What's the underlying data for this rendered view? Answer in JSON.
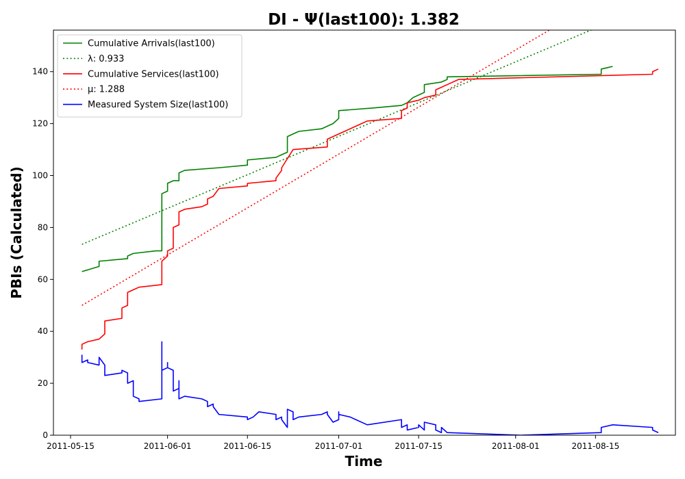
{
  "chart_data": {
    "type": "line",
    "title": "DI -  Ψ(last100): 1.382",
    "xlabel": "Time",
    "ylabel": "PBIs (Calculated)",
    "xlim": [
      "2011-05-12",
      "2011-08-29"
    ],
    "ylim": [
      0,
      156
    ],
    "x_ticks": [
      "2011-05-15",
      "2011-06-01",
      "2011-06-15",
      "2011-07-01",
      "2011-07-15",
      "2011-08-01",
      "2011-08-15"
    ],
    "y_ticks": [
      0,
      20,
      40,
      60,
      80,
      100,
      120,
      140
    ],
    "grid": false,
    "legend_position": "upper-left",
    "series": [
      {
        "name": "Cumulative Arrivals(last100)",
        "color": "#008000",
        "style": "solid",
        "points": [
          [
            "2011-05-17",
            63
          ],
          [
            "2011-05-20",
            65
          ],
          [
            "2011-05-20",
            67
          ],
          [
            "2011-05-25",
            68
          ],
          [
            "2011-05-25",
            69
          ],
          [
            "2011-05-26",
            70
          ],
          [
            "2011-05-30",
            71
          ],
          [
            "2011-05-31",
            71
          ],
          [
            "2011-05-31",
            93
          ],
          [
            "2011-06-01",
            94
          ],
          [
            "2011-06-01",
            97
          ],
          [
            "2011-06-02",
            98
          ],
          [
            "2011-06-03",
            98
          ],
          [
            "2011-06-03",
            101
          ],
          [
            "2011-06-04",
            102
          ],
          [
            "2011-06-10",
            103
          ],
          [
            "2011-06-15",
            104
          ],
          [
            "2011-06-15",
            106
          ],
          [
            "2011-06-20",
            107
          ],
          [
            "2011-06-21",
            108
          ],
          [
            "2011-06-22",
            109
          ],
          [
            "2011-06-22",
            115
          ],
          [
            "2011-06-23",
            116
          ],
          [
            "2011-06-24",
            117
          ],
          [
            "2011-06-28",
            118
          ],
          [
            "2011-06-29",
            119
          ],
          [
            "2011-06-30",
            120
          ],
          [
            "2011-07-01",
            122
          ],
          [
            "2011-07-01",
            125
          ],
          [
            "2011-07-07",
            126
          ],
          [
            "2011-07-12",
            127
          ],
          [
            "2011-07-13",
            128
          ],
          [
            "2011-07-14",
            130
          ],
          [
            "2011-07-15",
            131
          ],
          [
            "2011-07-16",
            132
          ],
          [
            "2011-07-16",
            135
          ],
          [
            "2011-07-19",
            136
          ],
          [
            "2011-07-20",
            137
          ],
          [
            "2011-07-20",
            138
          ],
          [
            "2011-08-16",
            139
          ],
          [
            "2011-08-16",
            141
          ],
          [
            "2011-08-18",
            142
          ]
        ]
      },
      {
        "name": "λ: 0.933",
        "color": "#008000",
        "style": "dotted",
        "points": [
          [
            "2011-05-17",
            73.5
          ],
          [
            "2011-08-18",
            159.5
          ]
        ]
      },
      {
        "name": "Cumulative Services(last100)",
        "color": "#ff0000",
        "style": "solid",
        "points": [
          [
            "2011-05-17",
            33
          ],
          [
            "2011-05-17",
            35
          ],
          [
            "2011-05-18",
            36
          ],
          [
            "2011-05-20",
            37
          ],
          [
            "2011-05-21",
            39
          ],
          [
            "2011-05-21",
            40
          ],
          [
            "2011-05-21",
            44
          ],
          [
            "2011-05-24",
            45
          ],
          [
            "2011-05-24",
            49
          ],
          [
            "2011-05-25",
            50
          ],
          [
            "2011-05-25",
            55
          ],
          [
            "2011-05-26",
            56
          ],
          [
            "2011-05-27",
            57
          ],
          [
            "2011-05-31",
            58
          ],
          [
            "2011-05-31",
            67
          ],
          [
            "2011-06-01",
            69
          ],
          [
            "2011-06-01",
            71
          ],
          [
            "2011-06-02",
            72
          ],
          [
            "2011-06-02",
            79
          ],
          [
            "2011-06-02",
            80
          ],
          [
            "2011-06-03",
            81
          ],
          [
            "2011-06-03",
            86
          ],
          [
            "2011-06-04",
            87
          ],
          [
            "2011-06-07",
            88
          ],
          [
            "2011-06-08",
            89
          ],
          [
            "2011-06-08",
            91
          ],
          [
            "2011-06-09",
            92
          ],
          [
            "2011-06-10",
            95
          ],
          [
            "2011-06-15",
            96
          ],
          [
            "2011-06-15",
            97
          ],
          [
            "2011-06-20",
            98
          ],
          [
            "2011-06-20",
            99
          ],
          [
            "2011-06-21",
            102
          ],
          [
            "2011-06-21",
            103
          ],
          [
            "2011-06-23",
            110
          ],
          [
            "2011-06-29",
            111
          ],
          [
            "2011-06-29",
            114
          ],
          [
            "2011-07-01",
            116
          ],
          [
            "2011-07-03",
            118
          ],
          [
            "2011-07-04",
            119
          ],
          [
            "2011-07-05",
            120
          ],
          [
            "2011-07-06",
            121
          ],
          [
            "2011-07-12",
            122
          ],
          [
            "2011-07-12",
            125
          ],
          [
            "2011-07-13",
            126
          ],
          [
            "2011-07-13",
            128
          ],
          [
            "2011-07-15",
            129
          ],
          [
            "2011-07-16",
            130
          ],
          [
            "2011-07-18",
            131
          ],
          [
            "2011-07-18",
            133
          ],
          [
            "2011-07-19",
            134
          ],
          [
            "2011-07-20",
            135
          ],
          [
            "2011-07-22",
            137
          ],
          [
            "2011-08-25",
            139
          ],
          [
            "2011-08-25",
            140
          ],
          [
            "2011-08-26",
            141
          ]
        ]
      },
      {
        "name": "μ: 1.288",
        "color": "#ff0000",
        "style": "dotted",
        "points": [
          [
            "2011-05-17",
            50
          ],
          [
            "2011-08-10",
            160
          ]
        ]
      },
      {
        "name": "Measured System Size(last100)",
        "color": "#0000ff",
        "style": "solid",
        "points": [
          [
            "2011-05-17",
            31
          ],
          [
            "2011-05-17",
            30
          ],
          [
            "2011-05-17",
            28
          ],
          [
            "2011-05-18",
            29
          ],
          [
            "2011-05-18",
            28
          ],
          [
            "2011-05-20",
            27
          ],
          [
            "2011-05-20",
            30
          ],
          [
            "2011-05-21",
            27
          ],
          [
            "2011-05-21",
            23
          ],
          [
            "2011-05-24",
            24
          ],
          [
            "2011-05-24",
            25
          ],
          [
            "2011-05-25",
            24
          ],
          [
            "2011-05-25",
            20
          ],
          [
            "2011-05-26",
            21
          ],
          [
            "2011-05-26",
            19
          ],
          [
            "2011-05-26",
            15
          ],
          [
            "2011-05-27",
            14
          ],
          [
            "2011-05-27",
            13
          ],
          [
            "2011-05-31",
            14
          ],
          [
            "2011-05-31",
            36
          ],
          [
            "2011-05-31",
            25
          ],
          [
            "2011-06-01",
            26
          ],
          [
            "2011-06-01",
            28
          ],
          [
            "2011-06-01",
            26
          ],
          [
            "2011-06-02",
            25
          ],
          [
            "2011-06-02",
            17
          ],
          [
            "2011-06-03",
            18
          ],
          [
            "2011-06-03",
            21
          ],
          [
            "2011-06-03",
            14
          ],
          [
            "2011-06-04",
            15
          ],
          [
            "2011-06-07",
            14
          ],
          [
            "2011-06-08",
            13
          ],
          [
            "2011-06-08",
            11
          ],
          [
            "2011-06-09",
            12
          ],
          [
            "2011-06-09",
            11
          ],
          [
            "2011-06-10",
            8
          ],
          [
            "2011-06-15",
            7
          ],
          [
            "2011-06-15",
            6
          ],
          [
            "2011-06-16",
            7
          ],
          [
            "2011-06-17",
            9
          ],
          [
            "2011-06-20",
            8
          ],
          [
            "2011-06-20",
            6
          ],
          [
            "2011-06-21",
            7
          ],
          [
            "2011-06-21",
            6
          ],
          [
            "2011-06-22",
            3
          ],
          [
            "2011-06-22",
            10
          ],
          [
            "2011-06-23",
            9
          ],
          [
            "2011-06-23",
            6
          ],
          [
            "2011-06-24",
            7
          ],
          [
            "2011-06-28",
            8
          ],
          [
            "2011-06-29",
            9
          ],
          [
            "2011-06-29",
            8
          ],
          [
            "2011-06-30",
            5
          ],
          [
            "2011-07-01",
            6
          ],
          [
            "2011-07-01",
            9
          ],
          [
            "2011-07-01",
            8
          ],
          [
            "2011-07-03",
            7
          ],
          [
            "2011-07-04",
            6
          ],
          [
            "2011-07-06",
            4
          ],
          [
            "2011-07-12",
            6
          ],
          [
            "2011-07-12",
            3
          ],
          [
            "2011-07-13",
            4
          ],
          [
            "2011-07-13",
            2
          ],
          [
            "2011-07-15",
            3
          ],
          [
            "2011-07-15",
            4
          ],
          [
            "2011-07-16",
            2
          ],
          [
            "2011-07-16",
            5
          ],
          [
            "2011-07-18",
            4
          ],
          [
            "2011-07-18",
            2
          ],
          [
            "2011-07-19",
            1
          ],
          [
            "2011-07-19",
            3
          ],
          [
            "2011-07-20",
            1
          ],
          [
            "2011-08-02",
            0
          ],
          [
            "2011-08-16",
            1
          ],
          [
            "2011-08-16",
            3
          ],
          [
            "2011-08-18",
            4
          ],
          [
            "2011-08-25",
            3
          ],
          [
            "2011-08-25",
            2
          ],
          [
            "2011-08-26",
            1
          ]
        ]
      }
    ]
  }
}
